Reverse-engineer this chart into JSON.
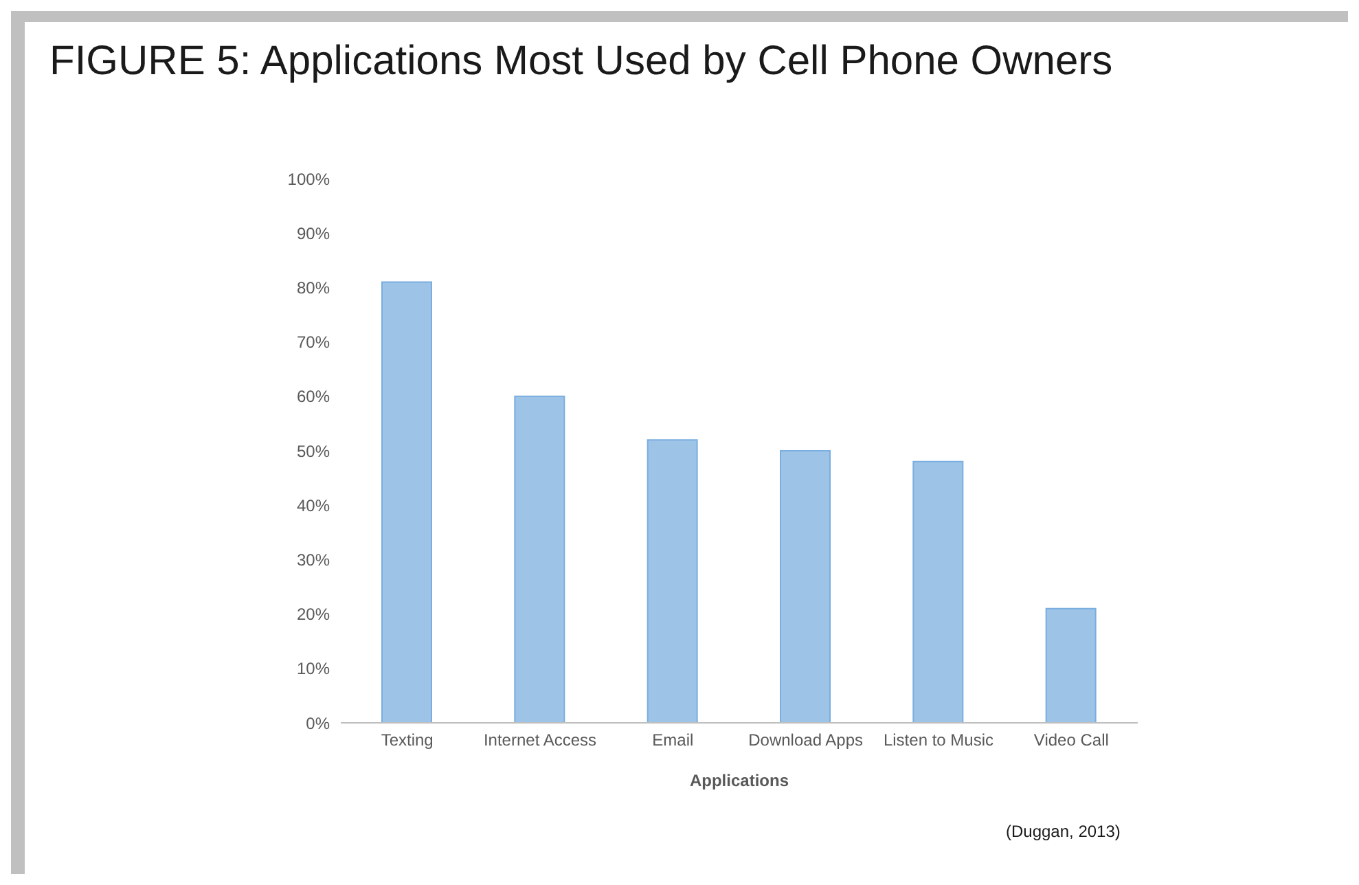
{
  "chart_data": {
    "type": "bar",
    "title": "FIGURE 5: Applications Most Used by Cell Phone Owners",
    "xlabel": "Applications",
    "categories": [
      "Texting",
      "Internet Access",
      "Email",
      "Download Apps",
      "Listen to Music",
      "Video Call"
    ],
    "values": [
      81,
      60,
      52,
      50,
      48,
      21
    ],
    "color": "#9dc3e6",
    "ylim": [
      0,
      100
    ],
    "yticks": [
      {
        "value": 0,
        "label": "0%"
      },
      {
        "value": 10,
        "label": "10%"
      },
      {
        "value": 20,
        "label": "20%"
      },
      {
        "value": 30,
        "label": "30%"
      },
      {
        "value": 40,
        "label": "40%"
      },
      {
        "value": 50,
        "label": "50%"
      },
      {
        "value": 60,
        "label": "60%"
      },
      {
        "value": 70,
        "label": "70%"
      },
      {
        "value": 80,
        "label": "80%"
      },
      {
        "value": 90,
        "label": "90%"
      },
      {
        "value": 100,
        "label": "100%"
      }
    ],
    "grid": false,
    "legend": false,
    "annotations": [
      "(Duggan, 2013)"
    ]
  }
}
